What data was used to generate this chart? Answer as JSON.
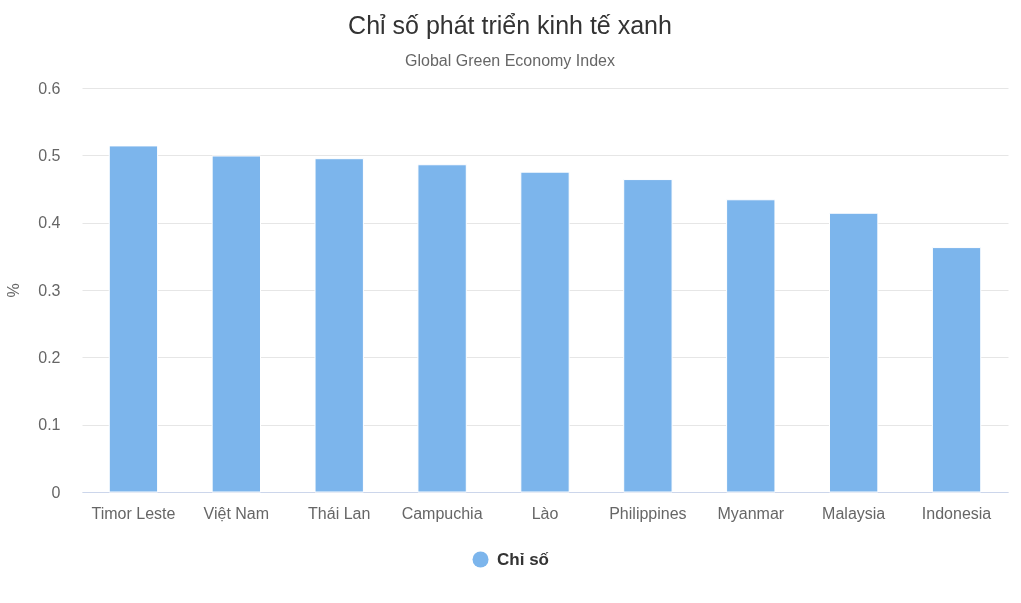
{
  "chart_data": {
    "type": "bar",
    "title": "Chỉ số phát triển kinh tế xanh",
    "subtitle": "Global Green Economy Index",
    "ylabel": "%",
    "categories": [
      "Timor Leste",
      "Việt Nam",
      "Thái Lan",
      "Campuchia",
      "Lào",
      "Philippines",
      "Myanmar",
      "Malaysia",
      "Indonesia"
    ],
    "series": [
      {
        "name": "Chỉ số",
        "color": "#7cb5ec",
        "values": [
          0.514,
          0.499,
          0.495,
          0.486,
          0.475,
          0.464,
          0.434,
          0.414,
          0.363
        ]
      }
    ],
    "ylim": [
      0,
      0.6
    ],
    "yticks": [
      0,
      0.1,
      0.2,
      0.3,
      0.4,
      0.5,
      0.6
    ],
    "grid": "y",
    "legend": "bottom"
  }
}
